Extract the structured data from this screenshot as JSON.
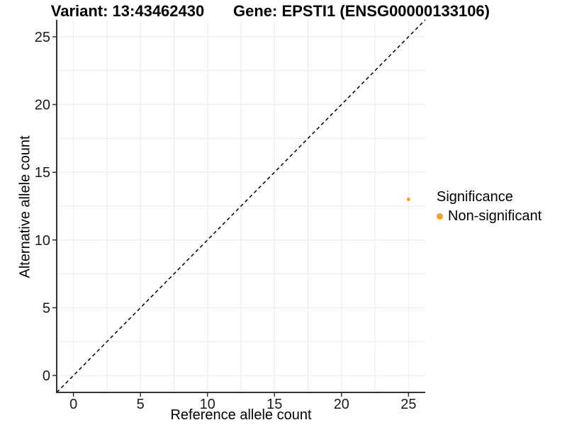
{
  "figure": {
    "background": "#FFFFFF",
    "title_left": "Variant: 13:43462430",
    "title_right": "Gene: EPSTI1 (ENSG00000133106)"
  },
  "chart_data": {
    "type": "scatter",
    "title": "Variant: 13:43462430 — Gene: EPSTI1 (ENSG00000133106)",
    "xlabel": "Reference allele count",
    "ylabel": "Alternative allele count",
    "xlim": [
      -1.25,
      26.25
    ],
    "ylim": [
      -1.25,
      26.25
    ],
    "x_ticks": [
      0,
      5,
      10,
      15,
      20,
      25
    ],
    "y_ticks": [
      0,
      5,
      10,
      15,
      20,
      25
    ],
    "grid": {
      "show": true,
      "interval": 2.5,
      "min": 0,
      "max": 25,
      "color": "#EBEBEB"
    },
    "reference_line": {
      "type": "identity-diagonal",
      "style": "dashed",
      "color": "#000000"
    },
    "series": [
      {
        "name": "Non-significant",
        "color": "#F9A02C",
        "points": [
          {
            "x": 25,
            "y": 13
          }
        ]
      }
    ],
    "legend": {
      "title": "Significance",
      "position": "right",
      "items": [
        {
          "label": "Non-significant",
          "color": "#F9A02C"
        }
      ]
    },
    "axis_color": "#333333",
    "tick_label_color": "#1A1A1A"
  }
}
